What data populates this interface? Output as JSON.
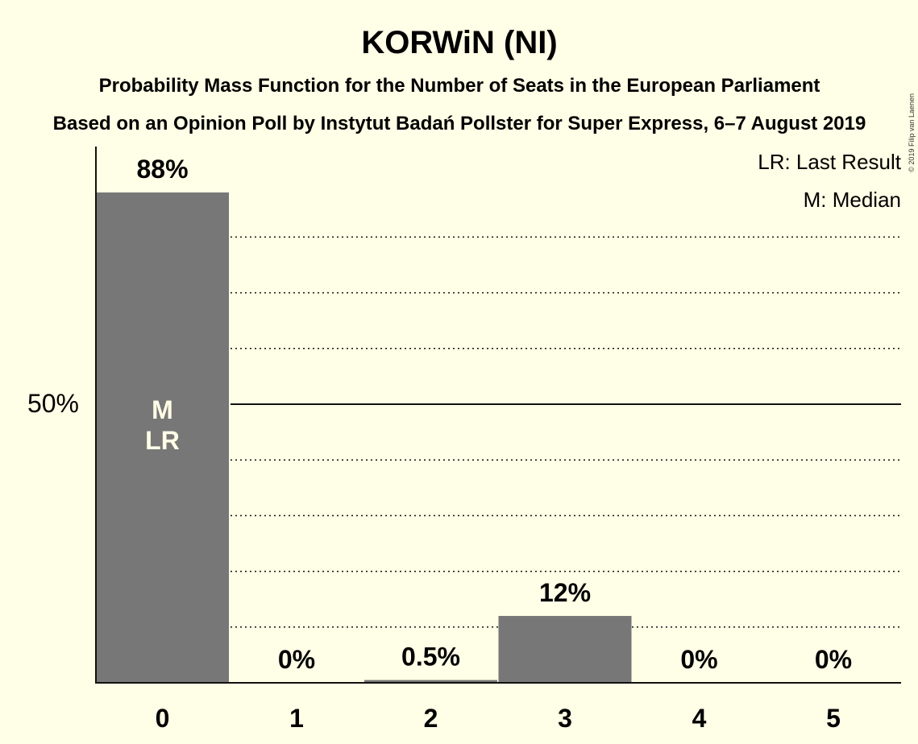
{
  "title": "KORWiN (NI)",
  "subtitle_1": "Probability Mass Function for the Number of Seats in the European Parliament",
  "subtitle_2": "Based on an Opinion Poll by Instytut Badań Pollster for Super Express, 6–7 August 2019",
  "legend": {
    "last_result": "LR: Last Result",
    "median": "M: Median"
  },
  "credit": "© 2019 Filip van Laenen",
  "colors": {
    "background": "#FFFEE6",
    "bar": "#777777",
    "axis": "#111111"
  },
  "chart_data": {
    "type": "bar",
    "categories": [
      "0",
      "1",
      "2",
      "3",
      "4",
      "5"
    ],
    "values": [
      88,
      0,
      0.5,
      12,
      0,
      0
    ],
    "value_labels": [
      "88%",
      "0%",
      "0.5%",
      "12%",
      "0%",
      "0%"
    ],
    "y_tick_label": "50%",
    "y_tick_value": 50,
    "ylim": [
      0,
      96
    ],
    "gridlines": [
      10,
      20,
      30,
      40,
      60,
      70,
      80
    ],
    "median_category": "0",
    "last_result_category": "0",
    "median_marker": "M",
    "last_result_marker": "LR"
  }
}
